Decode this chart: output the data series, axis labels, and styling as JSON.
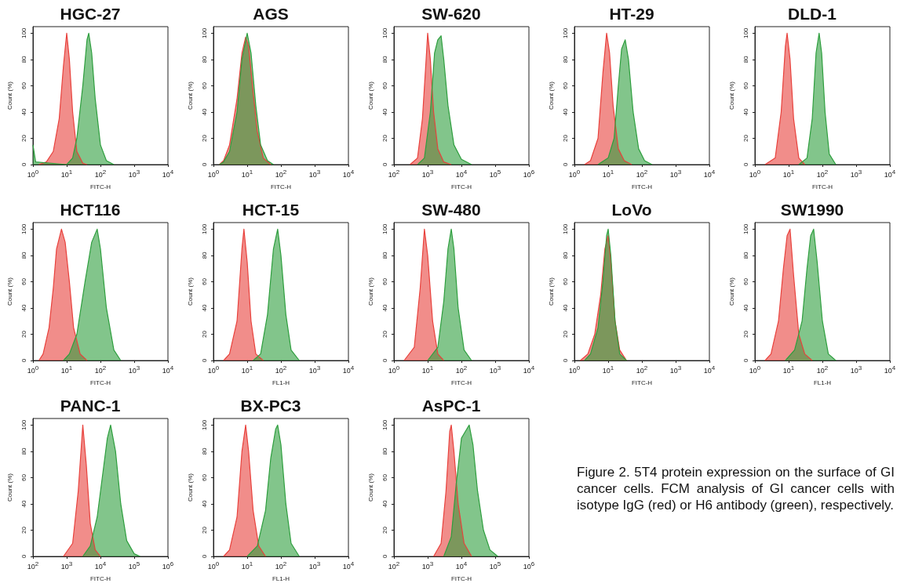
{
  "chart_data": [
    {
      "type": "area",
      "title": "HGC-27",
      "xlabel": "FITC-H",
      "ylabel": "Count (%)",
      "log": "x",
      "xlim": [
        1,
        10000
      ],
      "xticks": [
        {
          "value": 1,
          "label": "10$^{0}$"
        },
        {
          "value": 10,
          "label": "10$^{1}$"
        },
        {
          "value": 100,
          "label": "10$^{2}$"
        },
        {
          "value": 1000,
          "label": "10$^{3}$"
        },
        {
          "value": 10000,
          "label": "10$^{4}$"
        }
      ],
      "ylim": [
        0,
        105
      ],
      "yticks": [
        0,
        20,
        40,
        60,
        80,
        100
      ],
      "series": [
        {
          "color": "#e8413c",
          "x": [
            1.5,
            2.5,
            4,
            6,
            8,
            10,
            12,
            15,
            20,
            30,
            40
          ],
          "values": [
            0,
            2,
            10,
            35,
            75,
            100,
            80,
            40,
            10,
            1,
            0
          ]
        },
        {
          "color": "#2e9e3e",
          "x": [
            1,
            1.2,
            10,
            15,
            20,
            30,
            40,
            45,
            55,
            70,
            100,
            150,
            250
          ],
          "values": [
            15,
            2,
            0,
            5,
            20,
            60,
            95,
            100,
            85,
            50,
            15,
            3,
            0
          ]
        }
      ]
    },
    {
      "type": "area",
      "title": "AGS",
      "xlabel": "FITC-H",
      "ylabel": "Count (%)",
      "log": "x",
      "xlim": [
        1,
        10000
      ],
      "xticks": [
        {
          "value": 1,
          "label": "10$^{0}$"
        },
        {
          "value": 10,
          "label": "10$^{1}$"
        },
        {
          "value": 100,
          "label": "10$^{2}$"
        },
        {
          "value": 1000,
          "label": "10$^{3}$"
        },
        {
          "value": 10000,
          "label": "10$^{4}$"
        }
      ],
      "ylim": [
        0,
        105
      ],
      "yticks": [
        0,
        20,
        40,
        60,
        80,
        100
      ],
      "series": [
        {
          "color": "#e8413c",
          "x": [
            1.5,
            2,
            3,
            5,
            7,
            9,
            11,
            15,
            20,
            30,
            50
          ],
          "values": [
            0,
            3,
            15,
            50,
            85,
            97,
            90,
            55,
            25,
            5,
            0
          ]
        },
        {
          "color": "#2e9e3e",
          "x": [
            1.5,
            2,
            3,
            5,
            7,
            10,
            13,
            18,
            25,
            40,
            60
          ],
          "values": [
            0,
            2,
            10,
            40,
            80,
            100,
            85,
            45,
            15,
            3,
            0
          ]
        }
      ]
    },
    {
      "type": "area",
      "title": "SW-620",
      "xlabel": "FITC-H",
      "ylabel": "Count (%)",
      "log": "x",
      "xlim": [
        100,
        1000000
      ],
      "xticks": [
        {
          "value": 100,
          "label": "10$^{2}$"
        },
        {
          "value": 1000,
          "label": "10$^{3}$"
        },
        {
          "value": 10000,
          "label": "10$^{4}$"
        },
        {
          "value": 100000,
          "label": "10$^{5}$"
        },
        {
          "value": 1000000,
          "label": "10$^{6}$"
        }
      ],
      "ylim": [
        0,
        105
      ],
      "yticks": [
        0,
        20,
        40,
        60,
        80,
        100
      ],
      "series": [
        {
          "color": "#e8413c",
          "x": [
            300,
            500,
            700,
            900,
            1000,
            1200,
            1500,
            2000,
            3000,
            5000
          ],
          "values": [
            0,
            5,
            35,
            80,
            100,
            80,
            40,
            12,
            2,
            0
          ]
        },
        {
          "color": "#2e9e3e",
          "x": [
            500,
            800,
            1200,
            1600,
            2000,
            2500,
            3000,
            4000,
            6000,
            10000,
            20000
          ],
          "values": [
            0,
            5,
            40,
            85,
            95,
            98,
            80,
            45,
            15,
            4,
            0
          ]
        }
      ]
    },
    {
      "type": "area",
      "title": "HT-29",
      "xlabel": "FITC-H",
      "ylabel": "Count (%)",
      "log": "x",
      "xlim": [
        1,
        10000
      ],
      "xticks": [
        {
          "value": 1,
          "label": "10$^{0}$"
        },
        {
          "value": 10,
          "label": "10$^{1}$"
        },
        {
          "value": 100,
          "label": "10$^{2}$"
        },
        {
          "value": 1000,
          "label": "10$^{3}$"
        },
        {
          "value": 10000,
          "label": "10$^{4}$"
        }
      ],
      "ylim": [
        0,
        105
      ],
      "yticks": [
        0,
        20,
        40,
        60,
        80,
        100
      ],
      "series": [
        {
          "color": "#e8413c",
          "x": [
            2,
            3,
            5,
            7,
            9,
            11,
            14,
            20,
            30,
            50
          ],
          "values": [
            0,
            3,
            20,
            70,
            100,
            85,
            45,
            12,
            3,
            0
          ]
        },
        {
          "color": "#2e9e3e",
          "x": [
            5,
            10,
            15,
            20,
            25,
            32,
            40,
            55,
            80,
            120,
            200
          ],
          "values": [
            0,
            5,
            20,
            60,
            88,
            95,
            80,
            40,
            12,
            3,
            0
          ]
        }
      ]
    },
    {
      "type": "area",
      "title": "DLD-1",
      "xlabel": "FITC-H",
      "ylabel": "Count (%)",
      "log": "x",
      "xlim": [
        1,
        10000
      ],
      "xticks": [
        {
          "value": 1,
          "label": "10$^{0}$"
        },
        {
          "value": 10,
          "label": "10$^{1}$"
        },
        {
          "value": 100,
          "label": "10$^{2}$"
        },
        {
          "value": 1000,
          "label": "10$^{3}$"
        },
        {
          "value": 10000,
          "label": "10$^{4}$"
        }
      ],
      "ylim": [
        0,
        105
      ],
      "yticks": [
        0,
        20,
        40,
        60,
        80,
        100
      ],
      "series": [
        {
          "color": "#e8413c",
          "x": [
            2,
            4,
            6,
            8,
            9,
            11,
            14,
            20,
            30
          ],
          "values": [
            0,
            5,
            40,
            90,
            100,
            80,
            35,
            5,
            0
          ]
        },
        {
          "color": "#2e9e3e",
          "x": [
            20,
            35,
            50,
            65,
            80,
            95,
            120,
            160,
            250
          ],
          "values": [
            0,
            5,
            35,
            85,
            100,
            85,
            40,
            8,
            0
          ]
        }
      ]
    },
    {
      "type": "area",
      "title": "HCT116",
      "xlabel": "FITC-H",
      "ylabel": "Count (%)",
      "log": "x",
      "xlim": [
        1,
        10000
      ],
      "xticks": [
        {
          "value": 1,
          "label": "10$^{0}$"
        },
        {
          "value": 10,
          "label": "10$^{1}$"
        },
        {
          "value": 100,
          "label": "10$^{2}$"
        },
        {
          "value": 1000,
          "label": "10$^{3}$"
        },
        {
          "value": 10000,
          "label": "10$^{4}$"
        }
      ],
      "ylim": [
        0,
        105
      ],
      "yticks": [
        0,
        20,
        40,
        60,
        80,
        100
      ],
      "series": [
        {
          "color": "#e8413c",
          "x": [
            1.5,
            2,
            3,
            4,
            5,
            7,
            9,
            12,
            16,
            25,
            40
          ],
          "values": [
            0,
            5,
            25,
            55,
            85,
            100,
            90,
            60,
            25,
            5,
            0
          ]
        },
        {
          "color": "#2e9e3e",
          "x": [
            8,
            12,
            20,
            35,
            55,
            80,
            100,
            150,
            250,
            400
          ],
          "values": [
            0,
            5,
            20,
            60,
            90,
            100,
            85,
            40,
            8,
            0
          ]
        }
      ]
    },
    {
      "type": "area",
      "title": "HCT-15",
      "xlabel": "FL1-H",
      "ylabel": "Count (%)",
      "log": "x",
      "xlim": [
        1,
        10000
      ],
      "xticks": [
        {
          "value": 1,
          "label": "10$^{0}$"
        },
        {
          "value": 10,
          "label": "10$^{1}$"
        },
        {
          "value": 100,
          "label": "10$^{2}$"
        },
        {
          "value": 1000,
          "label": "10$^{3}$"
        },
        {
          "value": 10000,
          "label": "10$^{4}$"
        }
      ],
      "ylim": [
        0,
        105
      ],
      "yticks": [
        0,
        20,
        40,
        60,
        80,
        100
      ],
      "series": [
        {
          "color": "#e8413c",
          "x": [
            2,
            3,
            5,
            7,
            8,
            10,
            13,
            18,
            30
          ],
          "values": [
            0,
            5,
            30,
            85,
            100,
            75,
            30,
            5,
            0
          ]
        },
        {
          "color": "#2e9e3e",
          "x": [
            15,
            25,
            40,
            60,
            80,
            100,
            140,
            200,
            350
          ],
          "values": [
            0,
            5,
            35,
            85,
            100,
            80,
            35,
            8,
            0
          ]
        }
      ]
    },
    {
      "type": "area",
      "title": "SW-480",
      "xlabel": "FITC-H",
      "ylabel": "Count (%)",
      "log": "x",
      "xlim": [
        1,
        10000
      ],
      "xticks": [
        {
          "value": 1,
          "label": "10$^{0}$"
        },
        {
          "value": 10,
          "label": "10$^{1}$"
        },
        {
          "value": 100,
          "label": "10$^{2}$"
        },
        {
          "value": 1000,
          "label": "10$^{3}$"
        },
        {
          "value": 10000,
          "label": "10$^{4}$"
        }
      ],
      "ylim": [
        0,
        105
      ],
      "yticks": [
        0,
        20,
        40,
        60,
        80,
        100
      ],
      "series": [
        {
          "color": "#e8413c",
          "x": [
            2,
            4,
            6,
            8,
            10,
            14,
            20,
            30
          ],
          "values": [
            0,
            10,
            55,
            100,
            80,
            30,
            5,
            0
          ]
        },
        {
          "color": "#2e9e3e",
          "x": [
            10,
            20,
            30,
            40,
            50,
            60,
            80,
            120,
            200
          ],
          "values": [
            0,
            10,
            45,
            85,
            100,
            85,
            40,
            8,
            0
          ]
        }
      ]
    },
    {
      "type": "area",
      "title": "LoVo",
      "xlabel": "FITC-H",
      "ylabel": "Count (%)",
      "log": "x",
      "xlim": [
        1,
        10000
      ],
      "xticks": [
        {
          "value": 1,
          "label": "10$^{0}$"
        },
        {
          "value": 10,
          "label": "10$^{1}$"
        },
        {
          "value": 100,
          "label": "10$^{2}$"
        },
        {
          "value": 1000,
          "label": "10$^{3}$"
        },
        {
          "value": 10000,
          "label": "10$^{4}$"
        }
      ],
      "ylim": [
        0,
        105
      ],
      "yticks": [
        0,
        20,
        40,
        60,
        80,
        100
      ],
      "series": [
        {
          "color": "#e8413c",
          "x": [
            1.5,
            2.5,
            4,
            6,
            8,
            10,
            12,
            16,
            22,
            35
          ],
          "values": [
            0,
            5,
            20,
            50,
            85,
            95,
            75,
            30,
            8,
            0
          ]
        },
        {
          "color": "#2e9e3e",
          "x": [
            2,
            3,
            5,
            7,
            9,
            10,
            12,
            16,
            22,
            35
          ],
          "values": [
            0,
            5,
            25,
            60,
            95,
            100,
            80,
            30,
            5,
            0
          ]
        }
      ]
    },
    {
      "type": "area",
      "title": "SW1990",
      "xlabel": "FL1-H",
      "ylabel": "Count (%)",
      "log": "x",
      "xlim": [
        1,
        10000
      ],
      "xticks": [
        {
          "value": 1,
          "label": "10$^{0}$"
        },
        {
          "value": 10,
          "label": "10$^{1}$"
        },
        {
          "value": 100,
          "label": "10$^{2}$"
        },
        {
          "value": 1000,
          "label": "10$^{3}$"
        },
        {
          "value": 10000,
          "label": "10$^{4}$"
        }
      ],
      "ylim": [
        0,
        105
      ],
      "yticks": [
        0,
        20,
        40,
        60,
        80,
        100
      ],
      "series": [
        {
          "color": "#e8413c",
          "x": [
            2,
            3,
            5,
            7,
            9,
            11,
            14,
            20,
            30,
            50
          ],
          "values": [
            0,
            5,
            30,
            70,
            95,
            100,
            65,
            20,
            5,
            0
          ]
        },
        {
          "color": "#2e9e3e",
          "x": [
            8,
            15,
            25,
            35,
            45,
            55,
            70,
            100,
            150,
            250
          ],
          "values": [
            0,
            8,
            30,
            70,
            95,
            100,
            75,
            30,
            5,
            0
          ]
        }
      ]
    },
    {
      "type": "area",
      "title": "PANC-1",
      "xlabel": "FITC-H",
      "ylabel": "Count (%)",
      "log": "x",
      "xlim": [
        100,
        1000000
      ],
      "xticks": [
        {
          "value": 100,
          "label": "10$^{2}$"
        },
        {
          "value": 1000,
          "label": "10$^{3}$"
        },
        {
          "value": 10000,
          "label": "10$^{4}$"
        },
        {
          "value": 100000,
          "label": "10$^{5}$"
        },
        {
          "value": 1000000,
          "label": "10$^{6}$"
        }
      ],
      "ylim": [
        0,
        105
      ],
      "yticks": [
        0,
        20,
        40,
        60,
        80,
        100
      ],
      "series": [
        {
          "color": "#e8413c",
          "x": [
            800,
            1500,
            2200,
            3000,
            3800,
            5000,
            7000,
            10000
          ],
          "values": [
            0,
            10,
            50,
            100,
            70,
            25,
            5,
            0
          ]
        },
        {
          "color": "#2e9e3e",
          "x": [
            3000,
            5000,
            8000,
            12000,
            16000,
            20000,
            28000,
            40000,
            60000,
            100000,
            150000
          ],
          "values": [
            0,
            8,
            30,
            65,
            90,
            100,
            80,
            40,
            12,
            2,
            0
          ]
        }
      ]
    },
    {
      "type": "area",
      "title": "BX-PC3",
      "xlabel": "FL1-H",
      "ylabel": "Count (%)",
      "log": "x",
      "xlim": [
        1,
        10000
      ],
      "xticks": [
        {
          "value": 1,
          "label": "10$^{0}$"
        },
        {
          "value": 10,
          "label": "10$^{1}$"
        },
        {
          "value": 100,
          "label": "10$^{2}$"
        },
        {
          "value": 1000,
          "label": "10$^{3}$"
        },
        {
          "value": 10000,
          "label": "10$^{4}$"
        }
      ],
      "ylim": [
        0,
        105
      ],
      "yticks": [
        0,
        20,
        40,
        60,
        80,
        100
      ],
      "series": [
        {
          "color": "#e8413c",
          "x": [
            2,
            3,
            5,
            7,
            9,
            11,
            15,
            22,
            35
          ],
          "values": [
            0,
            5,
            30,
            80,
            100,
            80,
            35,
            8,
            0
          ]
        },
        {
          "color": "#2e9e3e",
          "x": [
            10,
            20,
            35,
            50,
            70,
            80,
            100,
            140,
            200,
            350
          ],
          "values": [
            0,
            8,
            35,
            75,
            97,
            100,
            85,
            40,
            10,
            0
          ]
        }
      ]
    },
    {
      "type": "area",
      "title": "AsPC-1",
      "xlabel": "FITC-H",
      "ylabel": "Count (%)",
      "log": "x",
      "xlim": [
        100,
        1000000
      ],
      "xticks": [
        {
          "value": 100,
          "label": "10$^{2}$"
        },
        {
          "value": 1000,
          "label": "10$^{3}$"
        },
        {
          "value": 10000,
          "label": "10$^{4}$"
        },
        {
          "value": 100000,
          "label": "10$^{5}$"
        },
        {
          "value": 1000000,
          "label": "10$^{6}$"
        }
      ],
      "ylim": [
        0,
        105
      ],
      "yticks": [
        0,
        20,
        40,
        60,
        80,
        100
      ],
      "series": [
        {
          "color": "#e8413c",
          "x": [
            1500,
            2500,
            3500,
            4500,
            5000,
            6000,
            8000,
            12000,
            20000
          ],
          "values": [
            0,
            10,
            50,
            95,
            100,
            80,
            40,
            10,
            0
          ]
        },
        {
          "color": "#2e9e3e",
          "x": [
            3000,
            5000,
            7000,
            10000,
            13000,
            17000,
            22000,
            30000,
            45000,
            70000,
            120000
          ],
          "values": [
            0,
            15,
            55,
            90,
            95,
            100,
            85,
            50,
            20,
            5,
            0
          ]
        }
      ]
    },
    {
      "type": "other",
      "annotations": [
        "Figure 2. 5T4 protein expression on the surface of GI cancer cells. FCM analysis of GI cancer cells with isotype IgG (red) or H6 antibody (green), respectively."
      ]
    }
  ]
}
